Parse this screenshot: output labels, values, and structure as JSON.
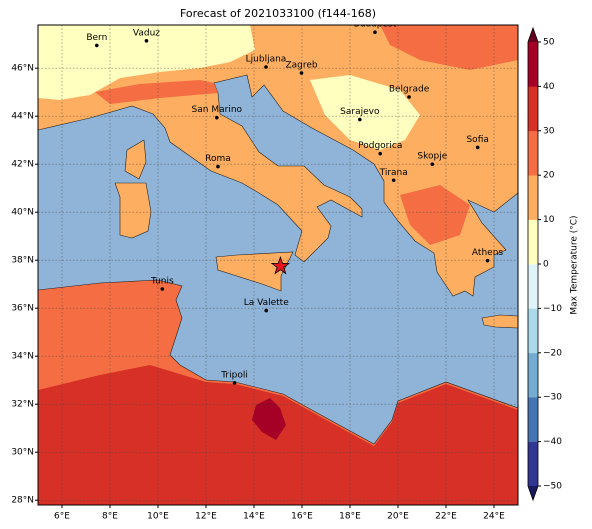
{
  "map": {
    "title": "Forecast of 2021033100 (f144-168)",
    "xlim": [
      5,
      25
    ],
    "ylim": [
      27.8,
      47.8
    ],
    "xticks": [
      {
        "value": 6,
        "label": "6°E"
      },
      {
        "value": 8,
        "label": "8°E"
      },
      {
        "value": 10,
        "label": "10°E"
      },
      {
        "value": 12,
        "label": "12°E"
      },
      {
        "value": 14,
        "label": "14°E"
      },
      {
        "value": 16,
        "label": "16°E"
      },
      {
        "value": 18,
        "label": "18°E"
      },
      {
        "value": 20,
        "label": "20°E"
      },
      {
        "value": 22,
        "label": "22°E"
      },
      {
        "value": 24,
        "label": "24°E"
      }
    ],
    "yticks": [
      {
        "value": 28,
        "label": "28°N"
      },
      {
        "value": 30,
        "label": "30°N"
      },
      {
        "value": 32,
        "label": "32°N"
      },
      {
        "value": 34,
        "label": "34°N"
      },
      {
        "value": 36,
        "label": "36°N"
      },
      {
        "value": 38,
        "label": "38°N"
      },
      {
        "value": 40,
        "label": "40°N"
      },
      {
        "value": 42,
        "label": "42°N"
      },
      {
        "value": 44,
        "label": "44°N"
      },
      {
        "value": 46,
        "label": "46°N"
      }
    ],
    "grid": true,
    "cities": [
      {
        "name": "Bern",
        "lon": 7.45,
        "lat": 46.95
      },
      {
        "name": "Vaduz",
        "lon": 9.52,
        "lat": 47.14
      },
      {
        "name": "Budapest",
        "lon": 19.04,
        "lat": 47.5
      },
      {
        "name": "Ljubljana",
        "lon": 14.5,
        "lat": 46.05
      },
      {
        "name": "Zagreb",
        "lon": 15.98,
        "lat": 45.8
      },
      {
        "name": "Belgrade",
        "lon": 20.46,
        "lat": 44.8
      },
      {
        "name": "San Marino",
        "lon": 12.45,
        "lat": 43.94
      },
      {
        "name": "Sarajevo",
        "lon": 18.41,
        "lat": 43.86
      },
      {
        "name": "Sofia",
        "lon": 23.32,
        "lat": 42.7
      },
      {
        "name": "Roma",
        "lon": 12.5,
        "lat": 41.9
      },
      {
        "name": "Podgorica",
        "lon": 19.26,
        "lat": 42.44
      },
      {
        "name": "Skopje",
        "lon": 21.43,
        "lat": 42.0
      },
      {
        "name": "Tirana",
        "lon": 19.82,
        "lat": 41.33
      },
      {
        "name": "Athens",
        "lon": 23.73,
        "lat": 37.98
      },
      {
        "name": "Tunis",
        "lon": 10.18,
        "lat": 36.8
      },
      {
        "name": "La Valette",
        "lon": 14.51,
        "lat": 35.9
      },
      {
        "name": "Tripoli",
        "lon": 13.19,
        "lat": 32.89
      }
    ],
    "marker": {
      "lon": 15.1,
      "lat": 37.75,
      "color": "#e8141a"
    },
    "colorbar": {
      "label": "Max Temperature (°C)",
      "lim": [
        -50,
        50
      ],
      "ticks": [
        {
          "value": -50,
          "label": "−50"
        },
        {
          "value": -40,
          "label": "−40"
        },
        {
          "value": -30,
          "label": "−30"
        },
        {
          "value": -20,
          "label": "−20"
        },
        {
          "value": -10,
          "label": "−10"
        },
        0,
        10,
        20,
        30,
        40,
        50
      ],
      "colors": [
        "#313695",
        "#4575b4",
        "#74add1",
        "#abd9e9",
        "#e0f3f8",
        "#ffffbf",
        "#fdae61",
        "#f46d43",
        "#d73027",
        "#a50026"
      ],
      "under_color": "#1a1a5e",
      "over_color": "#67001f"
    }
  }
}
